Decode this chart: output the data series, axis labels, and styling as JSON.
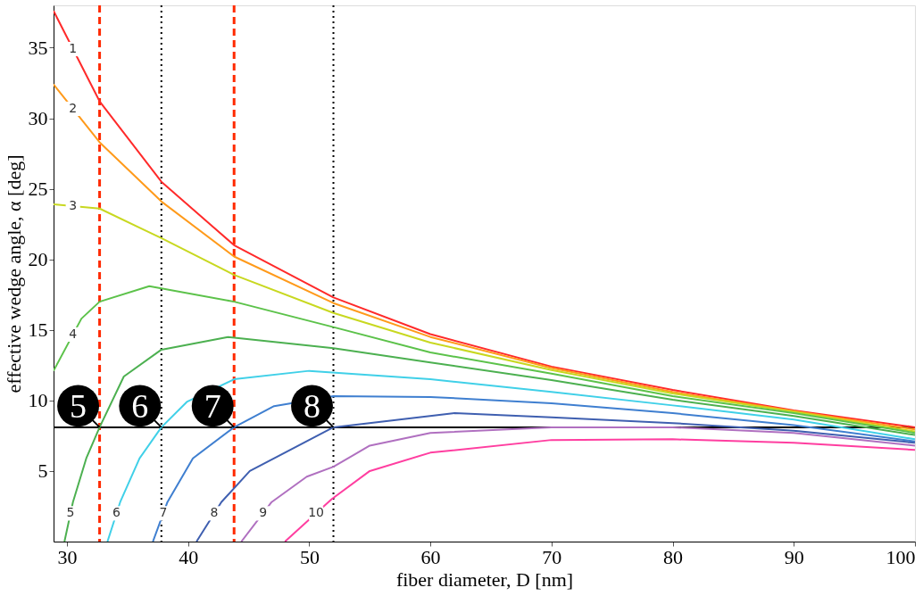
{
  "chart_data": {
    "type": "line",
    "xlabel": "fiber diameter, D [nm]",
    "ylabel": "effective wedge angle, α [deg]",
    "xlim": [
      28.9,
      100
    ],
    "ylim": [
      0,
      38
    ],
    "xticks": [
      30,
      40,
      50,
      60,
      70,
      80,
      90,
      100
    ],
    "yticks": [
      5,
      10,
      15,
      20,
      25,
      30,
      35
    ],
    "grid": false,
    "legend": false,
    "marker": "none",
    "line_style": "solid",
    "series": [
      {
        "color": "#ff2a2a",
        "x": [
          28.9,
          32.7,
          37.8,
          43.8,
          52,
          60,
          70,
          80,
          90,
          100
        ],
        "values": [
          37.6,
          31.2,
          25.5,
          21.0,
          17.3,
          14.7,
          12.4,
          10.75,
          9.3,
          8.1
        ]
      },
      {
        "color": "#ff9a1a",
        "x": [
          28.9,
          32.7,
          37.8,
          43.8,
          52,
          60,
          70,
          80,
          90,
          100
        ],
        "values": [
          32.4,
          28.3,
          24.1,
          20.2,
          16.9,
          14.5,
          12.3,
          10.6,
          9.25,
          7.95
        ]
      },
      {
        "color": "#c8d820",
        "x": [
          28.9,
          32.7,
          37.8,
          43.8,
          52,
          60,
          70,
          80,
          90,
          100
        ],
        "values": [
          23.9,
          23.6,
          21.5,
          18.9,
          16.2,
          14.1,
          12.15,
          10.5,
          9.2,
          7.8
        ]
      },
      {
        "color": "#5cc24a",
        "x": [
          28.9,
          31.2,
          32.7,
          36.8,
          43.8,
          52,
          60,
          70,
          80,
          90,
          100
        ],
        "values": [
          12.1,
          15.8,
          17.0,
          18.1,
          17.0,
          15.2,
          13.4,
          11.9,
          10.3,
          9.1,
          7.7
        ]
      },
      {
        "color": "#4cb050",
        "x": [
          29.8,
          30.5,
          31.6,
          32.7,
          34.7,
          37.8,
          43.3,
          52,
          60,
          70,
          80,
          90,
          100
        ],
        "values": [
          0,
          2.8,
          5.9,
          8.1,
          11.7,
          13.6,
          14.5,
          13.7,
          12.7,
          11.45,
          10.05,
          8.9,
          7.55
        ]
      },
      {
        "color": "#40d0e8",
        "x": [
          33.35,
          34.4,
          36.0,
          37.8,
          39.9,
          43.8,
          50,
          60,
          70,
          80,
          90,
          100
        ],
        "values": [
          0,
          2.8,
          5.9,
          8.1,
          9.9,
          11.5,
          12.1,
          11.5,
          10.6,
          9.65,
          8.65,
          7.25
        ]
      },
      {
        "color": "#3f7fd0",
        "x": [
          37.1,
          38.3,
          40.4,
          43.8,
          47.1,
          52,
          60,
          70,
          80,
          90,
          100
        ],
        "values": [
          0,
          2.8,
          5.9,
          8.1,
          9.6,
          10.3,
          10.25,
          9.8,
          9.1,
          8.25,
          7.1
        ]
      },
      {
        "color": "#3f5fb0",
        "x": [
          40.7,
          42.75,
          45.1,
          52,
          62,
          70,
          80,
          90,
          100
        ],
        "values": [
          0,
          2.8,
          5.0,
          8.1,
          9.1,
          8.8,
          8.4,
          7.85,
          7.0
        ]
      },
      {
        "color": "#b070c0",
        "x": [
          44.4,
          46.9,
          49.8,
          52,
          55,
          60,
          70,
          80,
          90,
          100
        ],
        "values": [
          0,
          2.8,
          4.6,
          5.3,
          6.8,
          7.7,
          8.1,
          8.1,
          7.7,
          6.8
        ]
      },
      {
        "color": "#ff3ea0",
        "x": [
          48.0,
          51.85,
          55,
          60,
          70,
          80,
          90,
          100
        ],
        "values": [
          0,
          3.0,
          5.0,
          6.3,
          7.2,
          7.25,
          7.0,
          6.5
        ]
      }
    ],
    "ref_lines": [
      {
        "axis": "x",
        "value": 32.7,
        "color": "#ff2a00",
        "line_style": "dashed"
      },
      {
        "axis": "x",
        "value": 37.8,
        "color": "#000000",
        "line_style": "dotted"
      },
      {
        "axis": "x",
        "value": 43.8,
        "color": "#ff2a00",
        "line_style": "dashed"
      },
      {
        "axis": "x",
        "value": 52,
        "color": "#000000",
        "line_style": "dotted"
      },
      {
        "axis": "y",
        "value": 8.1,
        "color": "#000000",
        "line_style": "solid"
      }
    ],
    "annotations": [
      {
        "text": "1",
        "x": 30.5,
        "y": 34.9
      },
      {
        "text": "2",
        "x": 30.5,
        "y": 30.67
      },
      {
        "text": "3",
        "x": 30.5,
        "y": 23.77
      },
      {
        "text": "4",
        "x": 30.5,
        "y": 14.67
      },
      {
        "text": "5",
        "x": 30.3,
        "y": 2.0
      },
      {
        "text": "6",
        "x": 34.1,
        "y": 2.0
      },
      {
        "text": "7",
        "x": 37.96,
        "y": 2.0
      },
      {
        "text": "8",
        "x": 42.16,
        "y": 2.0
      },
      {
        "text": "9",
        "x": 46.2,
        "y": 2.0
      },
      {
        "text": "10",
        "x": 50.57,
        "y": 2.0
      },
      {
        "text": "5",
        "x": 32.7,
        "y": 8.1
      },
      {
        "text": "6",
        "x": 37.8,
        "y": 8.1
      },
      {
        "text": "7",
        "x": 43.8,
        "y": 8.1
      },
      {
        "text": "8",
        "x": 52,
        "y": 8.1
      }
    ]
  }
}
